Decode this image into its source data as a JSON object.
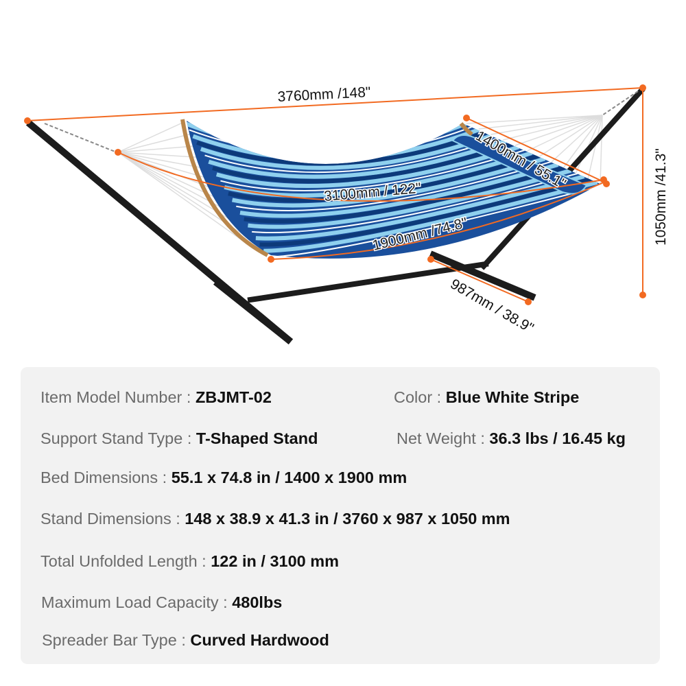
{
  "diagram": {
    "colors": {
      "dimension_line": "#f26a21",
      "stand": "#1c1c1c",
      "fabric_dark": "#1a4f9c",
      "fabric_light": "#8fd0ee",
      "spreader_bar": "#b9864a"
    },
    "labels": {
      "overall_length": "3760mm /148\"",
      "unfolded_length": "3100mm / 122\"",
      "bed_length": "1900mm /74.8\"",
      "bed_width": "1400mm / 55.1\"",
      "height": "1050mm /41.3\"",
      "foot_width": "987mm / 38.9\""
    }
  },
  "specs": [
    {
      "label": "Item Model Number : ",
      "value": "ZBJMT-02"
    },
    {
      "label": "Color : ",
      "value": "Blue White Stripe"
    },
    {
      "label": "Support Stand Type : ",
      "value": "T-Shaped Stand"
    },
    {
      "label": "Net Weight :  ",
      "value": "36.3 lbs / 16.45 kg"
    },
    {
      "label": "Bed Dimensions : ",
      "value": "55.1 x 74.8 in / 1400 x 1900 mm"
    },
    {
      "label": "Stand Dimensions : ",
      "value": "148 x 38.9 x 41.3 in / 3760 x 987 x 1050 mm"
    },
    {
      "label": "Total Unfolded Length : ",
      "value": "122 in / 3100 mm"
    },
    {
      "label": "Maximum Load Capacity : ",
      "value": "480lbs"
    },
    {
      "label": "Spreader Bar Type : ",
      "value": "Curved Hardwood"
    }
  ]
}
